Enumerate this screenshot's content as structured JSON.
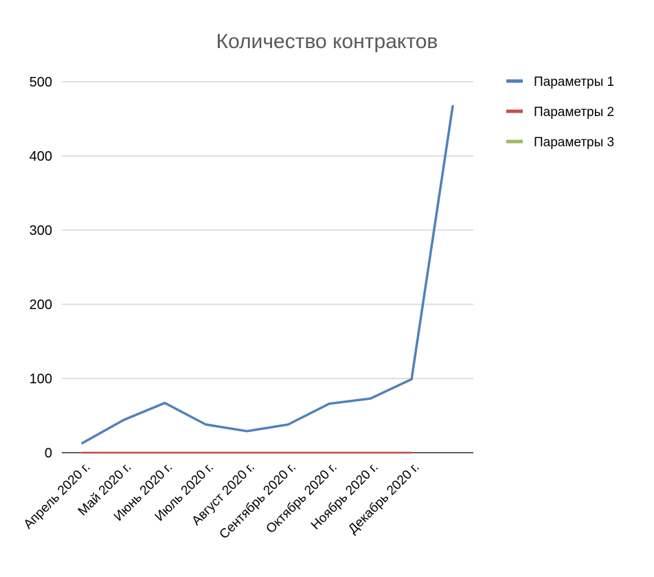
{
  "chart_data": {
    "type": "line",
    "title": "Количество контрактов",
    "xlabel": "",
    "ylabel": "",
    "categories": [
      "Апрель 2020 г.",
      "Май 2020 г.",
      "Июнь 2020 г.",
      "Июль 2020 г.",
      "Август 2020 г.",
      "Сентябрь 2020 г.",
      "Октябрь 2020 г.",
      "Ноябрь 2020 г.",
      "Декабрь 2020 г.",
      ""
    ],
    "yticks": [
      0,
      100,
      200,
      300,
      400,
      500
    ],
    "ylim": [
      0,
      500
    ],
    "grid": true,
    "legend_position": "right",
    "series": [
      {
        "name": "Параметры 1",
        "color": "#4F81BD",
        "values": [
          13,
          44,
          67,
          38,
          29,
          38,
          66,
          73,
          99,
          467
        ]
      },
      {
        "name": "Параметры 2",
        "color": "#C0504D",
        "values": [
          0,
          0,
          0,
          0,
          0,
          0,
          0,
          0,
          0,
          null
        ]
      },
      {
        "name": "Параметры 3",
        "color": "#9BBB59",
        "values": [
          0,
          0,
          0,
          0,
          0,
          0,
          0,
          0,
          0,
          null
        ]
      }
    ]
  }
}
